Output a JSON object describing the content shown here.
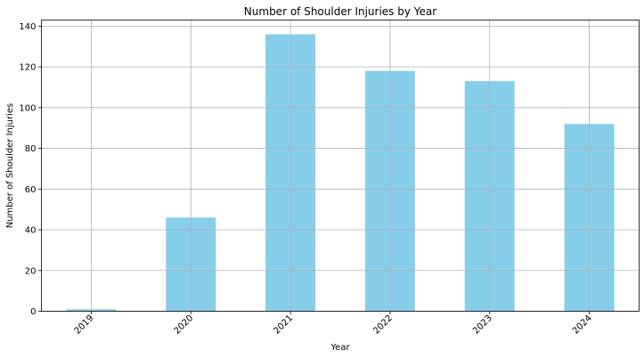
{
  "chart_data": {
    "type": "bar",
    "title": "Number of Shoulder Injuries by Year",
    "xlabel": "Year",
    "ylabel": "Number of Shoulder Injuries",
    "categories": [
      "2019",
      "2020",
      "2021",
      "2022",
      "2023",
      "2024"
    ],
    "values": [
      1,
      46,
      136,
      118,
      113,
      92
    ],
    "ylim": [
      0,
      143
    ],
    "yticks": [
      "0",
      "20",
      "40",
      "60",
      "80",
      "100",
      "120",
      "140"
    ],
    "bar_color": "#87CEEB",
    "grid": true,
    "legend": "none"
  }
}
